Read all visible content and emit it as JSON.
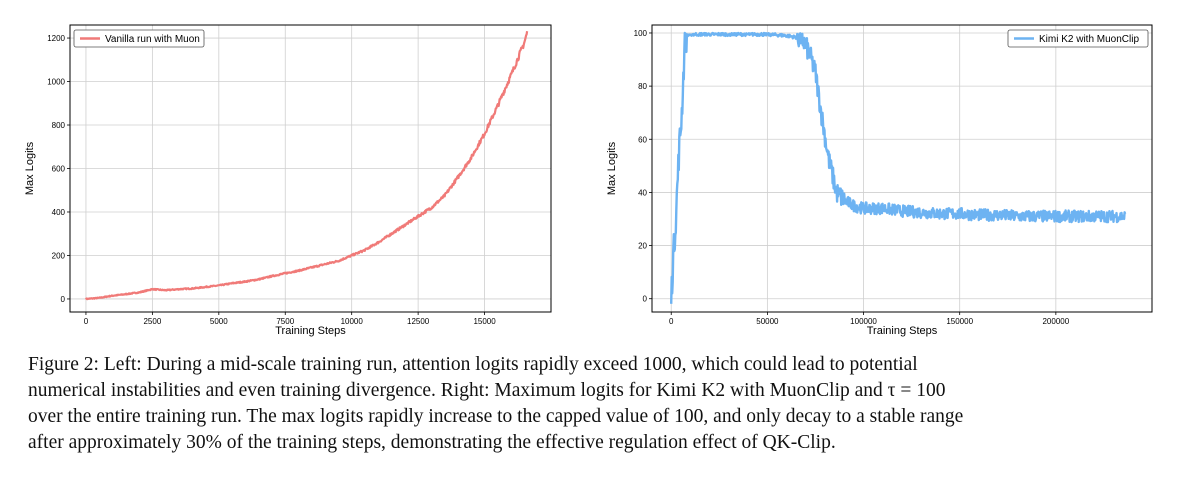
{
  "chart_data": [
    {
      "type": "line",
      "xlabel": "Training Steps",
      "ylabel": "Max Logits",
      "xlim": [
        -600,
        17500
      ],
      "ylim": [
        -60,
        1260
      ],
      "xticks": [
        0,
        2500,
        5000,
        7500,
        10000,
        12500,
        15000
      ],
      "xtick_labels": [
        "0",
        "2500",
        "5000",
        "7500",
        "10000",
        "12500",
        "15000"
      ],
      "yticks": [
        0,
        200,
        400,
        600,
        800,
        1000,
        1200
      ],
      "ytick_labels": [
        "0",
        "200",
        "400",
        "600",
        "800",
        "1000",
        "1200"
      ],
      "grid": true,
      "legend_placement": "top-left",
      "series": [
        {
          "name": "Vanilla run with Muon",
          "color": "#f07a78",
          "x": [
            0,
            500,
            1000,
            1500,
            2000,
            2500,
            3000,
            3500,
            4000,
            4500,
            5000,
            5500,
            6000,
            6500,
            7000,
            7500,
            8000,
            8500,
            9000,
            9500,
            10000,
            10500,
            11000,
            11500,
            12000,
            12500,
            13000,
            13500,
            14000,
            14500,
            15000,
            15500,
            16000,
            16500,
            16600
          ],
          "y": [
            0,
            5,
            15,
            22,
            30,
            45,
            40,
            45,
            48,
            55,
            62,
            72,
            80,
            90,
            105,
            118,
            130,
            145,
            160,
            175,
            200,
            225,
            260,
            300,
            340,
            380,
            420,
            475,
            560,
            650,
            760,
            890,
            1030,
            1180,
            1225
          ]
        }
      ]
    },
    {
      "type": "line",
      "xlabel": "Training Steps",
      "ylabel": "Max Logits",
      "xlim": [
        -10000,
        250000
      ],
      "ylim": [
        -5,
        103
      ],
      "xticks": [
        0,
        50000,
        100000,
        150000,
        200000
      ],
      "xtick_labels": [
        "0",
        "50000",
        "100000",
        "150000",
        "200000"
      ],
      "yticks": [
        0,
        20,
        40,
        60,
        80,
        100
      ],
      "ytick_labels": [
        "0",
        "20",
        "40",
        "60",
        "80",
        "100"
      ],
      "grid": true,
      "legend_placement": "top-right",
      "series": [
        {
          "name": "Kimi K2 with MuonClip",
          "color": "#6db3f2",
          "x": [
            0,
            1000,
            2500,
            4000,
            5500,
            7000,
            8000,
            10000,
            20000,
            30000,
            40000,
            50000,
            60000,
            68000,
            72000,
            75000,
            78000,
            82000,
            86000,
            90000,
            95000,
            100000,
            110000,
            120000,
            130000,
            140000,
            150000,
            160000,
            170000,
            180000,
            190000,
            200000,
            210000,
            220000,
            230000,
            236000
          ],
          "y": [
            0,
            15,
            32,
            55,
            70,
            95,
            99,
            99.5,
            99.5,
            99.5,
            99.5,
            99.5,
            99,
            98,
            92,
            85,
            70,
            52,
            40,
            37,
            35,
            34,
            34,
            33,
            32.5,
            32,
            32,
            31.5,
            31.5,
            31,
            31,
            31,
            31,
            31,
            31,
            31
          ]
        }
      ]
    }
  ],
  "caption": {
    "line1": "Figure 2: Left: During a mid-scale training run, attention logits rapidly exceed 1000, which could lead to potential",
    "line2": "numerical instabilities and even training divergence. Right: Maximum logits for Kimi K2 with MuonClip and τ = 100",
    "line3": "over the entire training run. The max logits rapidly increase to the capped value of 100, and only decay to a stable range",
    "line4": "after approximately 30% of the training steps, demonstrating the effective regulation effect of QK-Clip."
  }
}
